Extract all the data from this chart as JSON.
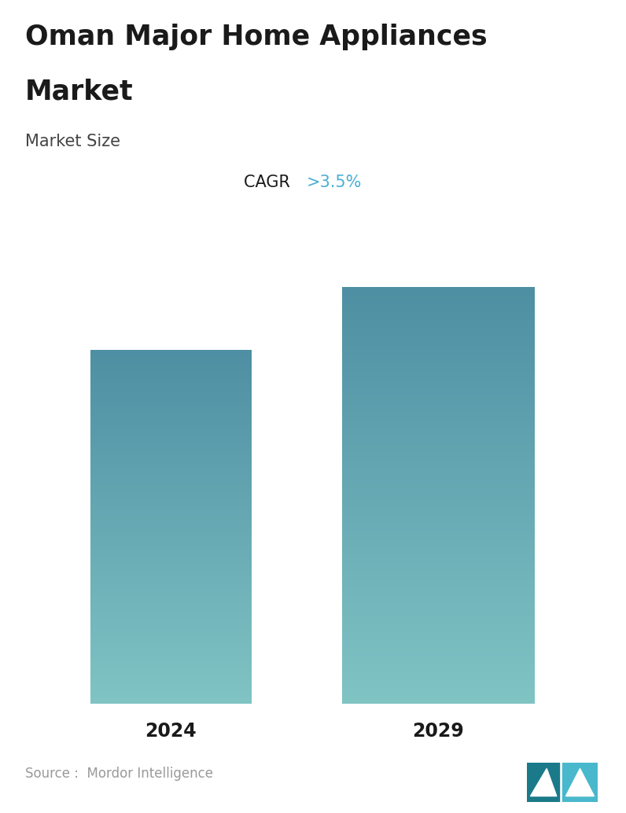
{
  "title_line1": "Oman Major Home Appliances",
  "title_line2": "Market",
  "subtitle": "Market Size",
  "cagr_label": "CAGR ",
  "cagr_value": ">3.5%",
  "categories": [
    "2024",
    "2029"
  ],
  "values": [
    0.72,
    0.87
  ],
  "bar_top_color": "#4e8fa3",
  "bar_bottom_color": "#80c4c4",
  "cagr_text_color": "#4aaed4",
  "title_color": "#1a1a1a",
  "subtitle_color": "#444444",
  "source_text": "Source :  Mordor Intelligence",
  "source_color": "#999999",
  "background_color": "#ffffff",
  "title_fontsize": 25,
  "subtitle_fontsize": 15,
  "cagr_fontsize": 15,
  "tick_fontsize": 17,
  "source_fontsize": 12
}
